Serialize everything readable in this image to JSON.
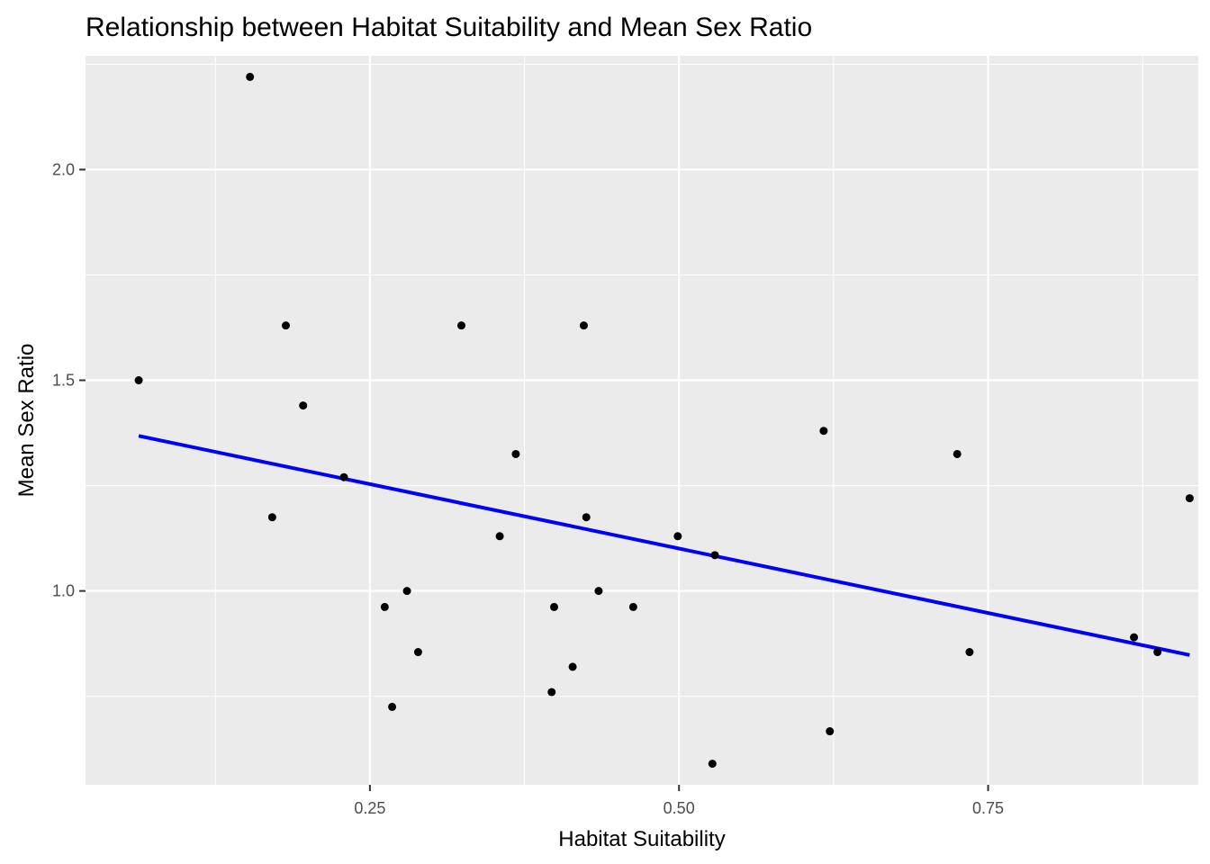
{
  "chart_data": {
    "type": "scatter",
    "title": "Relationship between Habitat Suitability and Mean Sex Ratio",
    "xlabel": "Habitat Suitability",
    "ylabel": "Mean Sex Ratio",
    "xlim": [
      0.02,
      0.92
    ],
    "ylim": [
      0.54,
      2.27
    ],
    "x_ticks": [
      {
        "value": 0.25,
        "label": "0.25"
      },
      {
        "value": 0.5,
        "label": "0.50"
      },
      {
        "value": 0.75,
        "label": "0.75"
      }
    ],
    "y_ticks": [
      {
        "value": 1.0,
        "label": "1.0"
      },
      {
        "value": 1.5,
        "label": "1.5"
      },
      {
        "value": 2.0,
        "label": "2.0"
      }
    ],
    "grid": true,
    "colors": {
      "panel": "#ebebeb",
      "grid": "#ffffff",
      "points": "#000000",
      "trend": "#0000ff"
    },
    "points": [
      {
        "x": 0.063,
        "y": 1.5
      },
      {
        "x": 0.153,
        "y": 2.22
      },
      {
        "x": 0.171,
        "y": 1.175
      },
      {
        "x": 0.182,
        "y": 1.63
      },
      {
        "x": 0.196,
        "y": 1.44
      },
      {
        "x": 0.229,
        "y": 1.27
      },
      {
        "x": 0.262,
        "y": 0.962
      },
      {
        "x": 0.268,
        "y": 0.725
      },
      {
        "x": 0.28,
        "y": 1.0
      },
      {
        "x": 0.289,
        "y": 0.855
      },
      {
        "x": 0.324,
        "y": 1.63
      },
      {
        "x": 0.355,
        "y": 1.13
      },
      {
        "x": 0.368,
        "y": 1.325
      },
      {
        "x": 0.397,
        "y": 0.76
      },
      {
        "x": 0.399,
        "y": 0.962
      },
      {
        "x": 0.414,
        "y": 0.82
      },
      {
        "x": 0.423,
        "y": 1.63
      },
      {
        "x": 0.425,
        "y": 1.175
      },
      {
        "x": 0.435,
        "y": 1.0
      },
      {
        "x": 0.463,
        "y": 0.962
      },
      {
        "x": 0.499,
        "y": 1.13
      },
      {
        "x": 0.527,
        "y": 0.59
      },
      {
        "x": 0.529,
        "y": 1.085
      },
      {
        "x": 0.617,
        "y": 1.38
      },
      {
        "x": 0.622,
        "y": 0.667
      },
      {
        "x": 0.725,
        "y": 1.325
      },
      {
        "x": 0.735,
        "y": 0.855
      },
      {
        "x": 0.868,
        "y": 0.89
      },
      {
        "x": 0.887,
        "y": 0.855
      },
      {
        "x": 0.913,
        "y": 1.22
      }
    ],
    "trend_line": {
      "x": [
        0.063,
        0.913
      ],
      "y": [
        1.368,
        0.848
      ]
    }
  }
}
